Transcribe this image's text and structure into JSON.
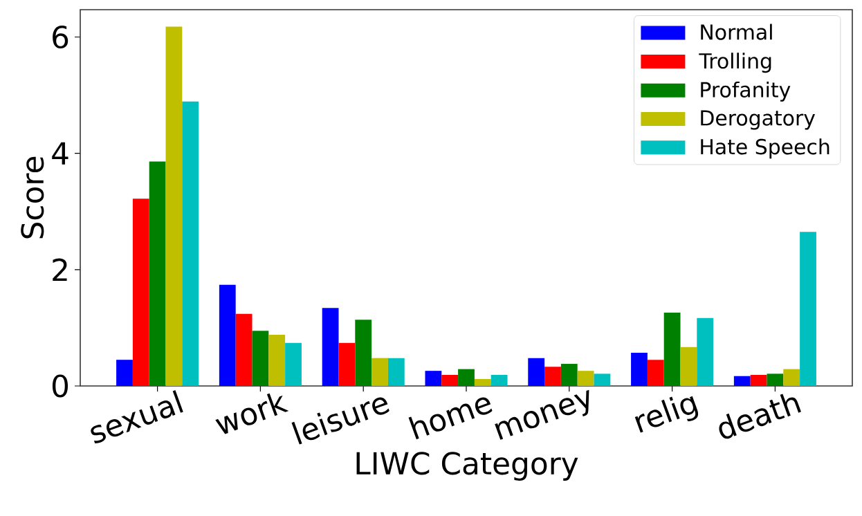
{
  "chart_data": {
    "type": "bar",
    "xlabel": "LIWC Category",
    "ylabel": "Score",
    "categories": [
      "sexual",
      "work",
      "leisure",
      "home",
      "money",
      "relig",
      "death"
    ],
    "series": [
      {
        "name": "Normal",
        "color": "#0000ff",
        "values": [
          0.45,
          1.74,
          1.34,
          0.26,
          0.48,
          0.57,
          0.17
        ]
      },
      {
        "name": "Trolling",
        "color": "#ff0000",
        "values": [
          3.22,
          1.24,
          0.74,
          0.19,
          0.33,
          0.45,
          0.19
        ]
      },
      {
        "name": "Profanity",
        "color": "#008000",
        "values": [
          3.86,
          0.95,
          1.14,
          0.29,
          0.38,
          1.26,
          0.21
        ]
      },
      {
        "name": "Derogatory",
        "color": "#bfbf00",
        "values": [
          6.18,
          0.88,
          0.48,
          0.12,
          0.26,
          0.67,
          0.29
        ]
      },
      {
        "name": "Hate Speech",
        "color": "#00bfbf",
        "values": [
          4.89,
          0.74,
          0.48,
          0.19,
          0.21,
          1.17,
          2.65
        ]
      }
    ],
    "ylim": [
      0,
      6.47
    ],
    "yticks": [
      0,
      2,
      4,
      6
    ],
    "grid": false,
    "legend": "top right"
  }
}
